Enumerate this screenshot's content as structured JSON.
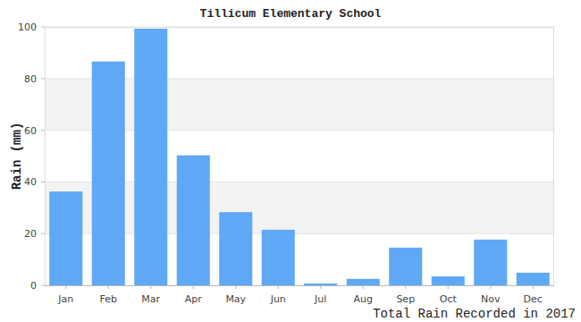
{
  "chart_data": {
    "type": "bar",
    "title": "Tillicum Elementary School",
    "y_label": "Rain (mm)",
    "x_label": "Total Rain Recorded in 2017",
    "categories": [
      "Jan",
      "Feb",
      "Mar",
      "Apr",
      "May",
      "Jun",
      "Jul",
      "Aug",
      "Sep",
      "Oct",
      "Nov",
      "Dec"
    ],
    "values": [
      36.3,
      86.6,
      99.3,
      50.3,
      28.3,
      21.5,
      0.7,
      2.5,
      14.6,
      3.5,
      17.7,
      4.9
    ],
    "color": "#5fa8f5",
    "ylim": [
      0,
      100
    ],
    "yticks": [
      0,
      20,
      40,
      60,
      80,
      100
    ],
    "grid": true
  }
}
